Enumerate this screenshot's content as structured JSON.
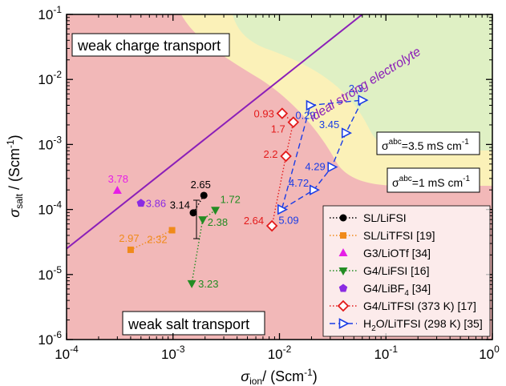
{
  "chart_data": {
    "type": "scatter",
    "x_scale": "log",
    "y_scale": "log",
    "xlim": [
      0.0001,
      1
    ],
    "ylim": [
      1e-06,
      0.1
    ],
    "x_ticks": [
      "10^-4",
      "10^-3",
      "10^-2",
      "10^-1",
      "10^0"
    ],
    "y_ticks": [
      "10^-6",
      "10^-5",
      "10^-4",
      "10^-3",
      "10^-2",
      "10^-1"
    ],
    "xlabel": {
      "symbol": "σ",
      "sub": "ion",
      "rest": "/ (Scm",
      "exp": "-1",
      "close": ")"
    },
    "ylabel": {
      "symbol": "σ",
      "sub": "salt",
      "rest": " / (Scm",
      "exp": "-1",
      "close": ")"
    },
    "regions": [
      {
        "label": "weak charge transport",
        "color": "#f2b8b8"
      },
      {
        "label": "weak salt transport",
        "color": "#f2b8b8"
      },
      {
        "label": "",
        "color": "#fbf1b8"
      },
      {
        "label": "",
        "color": "#dff0c4"
      }
    ],
    "region_labels": {
      "charge": "weak charge transport",
      "salt": "weak salt transport",
      "c35": {
        "base": "σ",
        "sup": "abc",
        "rest": "=3.5 mS cm",
        "exp": "-1"
      },
      "c1": {
        "base": "σ",
        "sup": "abc",
        "rest": "=1 mS cm",
        "exp": "-1"
      }
    },
    "ideal_line": {
      "label": "ideal strong electrolyte",
      "color": "#8b1fb8",
      "from": [
        0.0001,
        2.5e-05
      ],
      "to": [
        0.06,
        0.1
      ]
    },
    "series": [
      {
        "name": "SL/LiFSI",
        "color": "#000000",
        "marker": "circle",
        "line": "dotted",
        "points": [
          {
            "x": 0.00195,
            "y": 0.000165,
            "label": "2.65"
          },
          {
            "x": 0.00155,
            "y": 8.9e-05,
            "label": "3.14"
          }
        ]
      },
      {
        "name": "SL/LiTFSI [19]",
        "color": "#f08a1a",
        "marker": "square",
        "line": "dotted",
        "points": [
          {
            "x": 0.00098,
            "y": 4.8e-05,
            "label": "2.32"
          },
          {
            "x": 0.0004,
            "y": 2.4e-05,
            "label": "2.97"
          }
        ]
      },
      {
        "name": "G3/LiOTf [34]",
        "color": "#e61ee6",
        "marker": "triangle-up",
        "line": "none",
        "points": [
          {
            "x": 0.0003,
            "y": 0.000195,
            "label": "3.78"
          }
        ]
      },
      {
        "name": "G4/LiFSI [16]",
        "color": "#238c23",
        "marker": "triangle-down",
        "line": "dotted",
        "points": [
          {
            "x": 0.0025,
            "y": 9.8e-05,
            "label": "1.72"
          },
          {
            "x": 0.0019,
            "y": 7e-05,
            "label": "2.38"
          },
          {
            "x": 0.0015,
            "y": 7.3e-06,
            "label": "3.23"
          }
        ]
      },
      {
        "name": "G4/LiBF4 [34]",
        "color": "#8a2be2",
        "marker": "pentagon",
        "line": "none",
        "points": [
          {
            "x": 0.0005,
            "y": 0.000125,
            "label": "3.86"
          }
        ]
      },
      {
        "name": "G4/LiTFSI (373 K) [17]",
        "color": "#e31a1a",
        "marker": "diamond-open",
        "line": "dotted",
        "points": [
          {
            "x": 0.0106,
            "y": 0.003,
            "label": "0.93"
          },
          {
            "x": 0.0135,
            "y": 0.0022,
            "label": "1.7"
          },
          {
            "x": 0.0115,
            "y": 0.00066,
            "label": "2.2"
          },
          {
            "x": 0.0085,
            "y": 5.6e-05,
            "label": "2.64"
          }
        ]
      },
      {
        "name": "H2O/LiTFSI (298 K) [35]",
        "color": "#1a3de6",
        "marker": "triangle-right-open",
        "line": "dashed",
        "points": [
          {
            "x": 0.0195,
            "y": 0.004,
            "label": "0.29"
          },
          {
            "x": 0.06,
            "y": 0.0048,
            "label": "2.3"
          },
          {
            "x": 0.042,
            "y": 0.0015,
            "label": "3.45"
          },
          {
            "x": 0.031,
            "y": 0.00045,
            "label": "4.29"
          },
          {
            "x": 0.021,
            "y": 0.0002,
            "label": "4.72"
          },
          {
            "x": 0.0105,
            "y": 0.0001,
            "label": "5.09"
          }
        ]
      }
    ],
    "legend": {
      "position": "bottom-right"
    },
    "grid": false
  }
}
